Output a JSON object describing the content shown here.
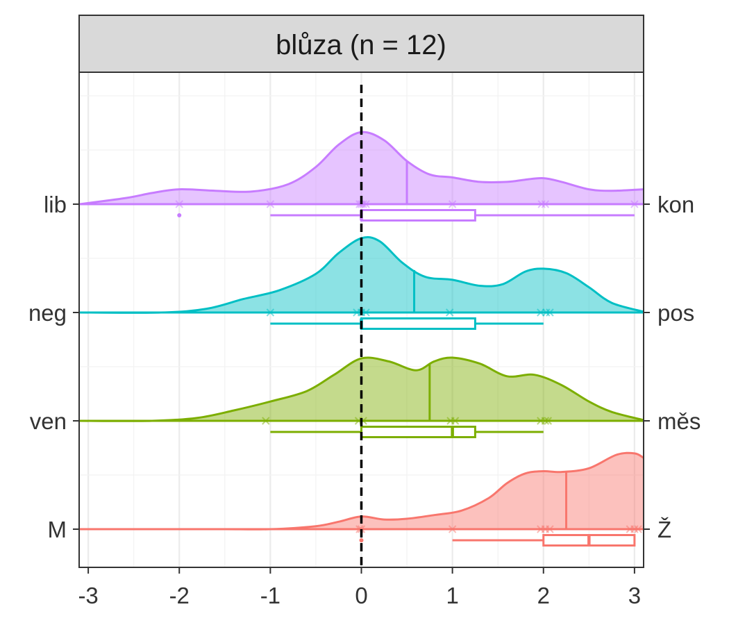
{
  "chart_data": {
    "type": "ridgeline",
    "facet_title": "blůza (n = 12)",
    "xlim": [
      -3.1,
      3.1
    ],
    "x_ticks": [
      "-3",
      "-2",
      "-1",
      "0",
      "1",
      "2",
      "3"
    ],
    "x_tick_values": [
      -3,
      -2,
      -1,
      0,
      1,
      2,
      3
    ],
    "grid": true,
    "reference_line_x": 0,
    "series": [
      {
        "left_label": "lib",
        "right_label": "kon",
        "color": "#C77CFF",
        "density_x": [
          -3.1,
          -2.6,
          -2.3,
          -2.0,
          -1.6,
          -1.2,
          -0.8,
          -0.5,
          -0.25,
          0.0,
          0.25,
          0.5,
          0.75,
          1.0,
          1.3,
          1.6,
          1.8,
          2.0,
          2.2,
          2.5,
          2.75,
          3.1
        ],
        "density_y": [
          0.0,
          0.08,
          0.15,
          0.2,
          0.18,
          0.17,
          0.27,
          0.5,
          0.8,
          0.97,
          0.86,
          0.58,
          0.4,
          0.36,
          0.3,
          0.3,
          0.33,
          0.35,
          0.3,
          0.2,
          0.18,
          0.2
        ],
        "mean": 0.5,
        "points": [
          -2,
          -1,
          -0.02,
          0,
          0.02,
          0.05,
          1,
          1.98,
          2.02,
          3
        ],
        "box": {
          "q1": 0,
          "median": 0,
          "q3": 1.25,
          "whisker_low": -1,
          "whisker_high": 3
        },
        "outliers": [
          -2
        ]
      },
      {
        "left_label": "neg",
        "right_label": "pos",
        "color": "#00BFC4",
        "density_x": [
          -3.1,
          -2.2,
          -1.7,
          -1.3,
          -0.9,
          -0.5,
          -0.25,
          0.0,
          0.2,
          0.45,
          0.7,
          1.0,
          1.3,
          1.55,
          1.8,
          2.0,
          2.25,
          2.5,
          2.75,
          3.1
        ],
        "density_y": [
          0.0,
          0.0,
          0.05,
          0.18,
          0.3,
          0.52,
          0.8,
          1.0,
          0.96,
          0.67,
          0.48,
          0.44,
          0.36,
          0.38,
          0.55,
          0.59,
          0.53,
          0.34,
          0.13,
          0.01
        ],
        "mean": 0.58,
        "points": [
          -1,
          -0.05,
          0,
          0.05,
          0.97,
          1.97,
          2.03,
          2.07
        ],
        "box": {
          "q1": 0,
          "median": 0,
          "q3": 1.25,
          "whisker_low": -1,
          "whisker_high": 2
        },
        "outliers": []
      },
      {
        "left_label": "ven",
        "right_label": "měs",
        "color": "#7CAE00",
        "density_x": [
          -3.1,
          -2.3,
          -1.8,
          -1.4,
          -1.0,
          -0.6,
          -0.3,
          0.0,
          0.3,
          0.6,
          0.8,
          1.0,
          1.3,
          1.6,
          1.9,
          2.2,
          2.5,
          2.75,
          3.1
        ],
        "density_y": [
          0.0,
          0.0,
          0.04,
          0.14,
          0.26,
          0.4,
          0.62,
          0.84,
          0.8,
          0.68,
          0.8,
          0.85,
          0.77,
          0.6,
          0.62,
          0.48,
          0.26,
          0.12,
          0.01
        ],
        "mean": 0.75,
        "points": [
          -1.05,
          -0.03,
          0.02,
          0.98,
          1.03,
          1.97,
          2.02,
          2.05
        ],
        "box": {
          "q1": 0,
          "median": 1,
          "q3": 1.25,
          "whisker_low": -1,
          "whisker_high": 2
        },
        "outliers": []
      },
      {
        "left_label": "M",
        "right_label": "Ž",
        "color": "#F8766D",
        "density_x": [
          -3.1,
          -2.0,
          -1.5,
          -1.0,
          -0.5,
          -0.25,
          0.0,
          0.25,
          0.5,
          0.8,
          1.1,
          1.4,
          1.6,
          1.8,
          2.0,
          2.2,
          2.5,
          2.8,
          3.0,
          3.1
        ],
        "density_y": [
          0.0,
          0.0,
          0.0,
          0.0,
          0.04,
          0.1,
          0.17,
          0.13,
          0.14,
          0.19,
          0.25,
          0.42,
          0.62,
          0.75,
          0.78,
          0.77,
          0.82,
          1.0,
          1.02,
          0.96
        ],
        "mean": 2.25,
        "points": [
          -0.02,
          0,
          1,
          1.97,
          2.02,
          2.07,
          2.95,
          3.0,
          3.04
        ],
        "box": {
          "q1": 2,
          "median": 2.5,
          "q3": 3,
          "whisker_low": 1,
          "whisker_high": 3
        },
        "outliers": [
          0
        ]
      }
    ]
  }
}
